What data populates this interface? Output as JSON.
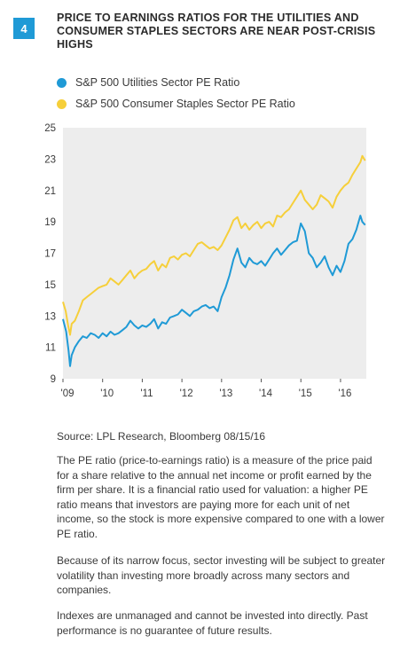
{
  "figure": {
    "number": "4",
    "title": "PRICE TO EARNINGS RATIOS FOR THE UTILITIES AND CONSUMER STAPLES SECTORS ARE NEAR POST-CRISIS HIGHS"
  },
  "colors": {
    "utilities": "#1f9ad6",
    "staples": "#f6cf3a",
    "plot_background": "#ededed"
  },
  "chart_data": {
    "type": "line",
    "ylim": [
      9,
      25
    ],
    "xlim": [
      2009.0,
      2016.65
    ],
    "yticks": [
      9,
      11,
      13,
      15,
      17,
      19,
      21,
      23,
      25
    ],
    "ytick_labels": [
      "9",
      "11",
      "13",
      "15",
      "17",
      "19",
      "21",
      "23",
      "25"
    ],
    "xticks": [
      2009,
      2010,
      2011,
      2012,
      2013,
      2014,
      2015,
      2016
    ],
    "xtick_labels": [
      "'09",
      "'10",
      "'11",
      "'12",
      "'13",
      "'14",
      "'15",
      "'16"
    ],
    "grid": false,
    "legend_position": "top-left",
    "series": [
      {
        "name": "S&P 500 Utilities Sector PE Ratio",
        "color": "#1f9ad6",
        "x": [
          2009.0,
          2009.08,
          2009.14,
          2009.18,
          2009.22,
          2009.3,
          2009.4,
          2009.5,
          2009.6,
          2009.7,
          2009.8,
          2009.9,
          2010.0,
          2010.1,
          2010.2,
          2010.3,
          2010.4,
          2010.5,
          2010.6,
          2010.7,
          2010.8,
          2010.9,
          2011.0,
          2011.1,
          2011.2,
          2011.3,
          2011.4,
          2011.5,
          2011.6,
          2011.7,
          2011.8,
          2011.9,
          2012.0,
          2012.1,
          2012.2,
          2012.3,
          2012.4,
          2012.5,
          2012.6,
          2012.7,
          2012.8,
          2012.9,
          2013.0,
          2013.1,
          2013.2,
          2013.3,
          2013.4,
          2013.5,
          2013.6,
          2013.7,
          2013.8,
          2013.9,
          2014.0,
          2014.1,
          2014.2,
          2014.3,
          2014.4,
          2014.5,
          2014.6,
          2014.7,
          2014.8,
          2014.9,
          2015.0,
          2015.1,
          2015.2,
          2015.3,
          2015.4,
          2015.5,
          2015.6,
          2015.7,
          2015.8,
          2015.9,
          2016.0,
          2016.1,
          2016.2,
          2016.3,
          2016.4,
          2016.5,
          2016.55,
          2016.62
        ],
        "y": [
          12.8,
          12.0,
          10.8,
          9.8,
          10.5,
          11.0,
          11.4,
          11.7,
          11.6,
          11.9,
          11.8,
          11.6,
          11.9,
          11.7,
          12.0,
          11.8,
          11.9,
          12.1,
          12.3,
          12.7,
          12.4,
          12.2,
          12.4,
          12.3,
          12.5,
          12.8,
          12.2,
          12.6,
          12.5,
          12.9,
          13.0,
          13.1,
          13.4,
          13.2,
          13.0,
          13.3,
          13.4,
          13.6,
          13.7,
          13.5,
          13.6,
          13.3,
          14.2,
          14.8,
          15.6,
          16.6,
          17.3,
          16.4,
          16.1,
          16.7,
          16.4,
          16.3,
          16.5,
          16.2,
          16.6,
          17.0,
          17.3,
          16.9,
          17.2,
          17.5,
          17.7,
          17.8,
          18.9,
          18.4,
          17.0,
          16.7,
          16.1,
          16.4,
          16.8,
          16.1,
          15.6,
          16.2,
          15.8,
          16.5,
          17.6,
          17.9,
          18.5,
          19.4,
          19.0,
          18.8
        ]
      },
      {
        "name": "S&P 500 Consumer Staples Sector PE Ratio",
        "color": "#f6cf3a",
        "x": [
          2009.0,
          2009.07,
          2009.13,
          2009.18,
          2009.22,
          2009.3,
          2009.4,
          2009.5,
          2009.6,
          2009.7,
          2009.8,
          2009.9,
          2010.0,
          2010.1,
          2010.2,
          2010.3,
          2010.4,
          2010.5,
          2010.6,
          2010.7,
          2010.8,
          2010.9,
          2011.0,
          2011.1,
          2011.2,
          2011.3,
          2011.4,
          2011.5,
          2011.6,
          2011.7,
          2011.8,
          2011.9,
          2012.0,
          2012.1,
          2012.2,
          2012.3,
          2012.4,
          2012.5,
          2012.6,
          2012.7,
          2012.8,
          2012.9,
          2013.0,
          2013.1,
          2013.2,
          2013.3,
          2013.4,
          2013.5,
          2013.6,
          2013.7,
          2013.8,
          2013.9,
          2014.0,
          2014.1,
          2014.2,
          2014.3,
          2014.4,
          2014.5,
          2014.6,
          2014.7,
          2014.8,
          2014.9,
          2015.0,
          2015.1,
          2015.2,
          2015.3,
          2015.4,
          2015.5,
          2015.6,
          2015.7,
          2015.8,
          2015.9,
          2016.0,
          2016.1,
          2016.2,
          2016.3,
          2016.4,
          2016.5,
          2016.55,
          2016.62
        ],
        "y": [
          13.9,
          13.3,
          12.4,
          11.8,
          12.5,
          12.7,
          13.3,
          14.0,
          14.2,
          14.4,
          14.6,
          14.8,
          14.9,
          15.0,
          15.4,
          15.2,
          15.0,
          15.3,
          15.6,
          15.9,
          15.4,
          15.7,
          15.9,
          16.0,
          16.3,
          16.5,
          15.9,
          16.3,
          16.1,
          16.7,
          16.8,
          16.6,
          16.9,
          17.0,
          16.8,
          17.2,
          17.6,
          17.7,
          17.5,
          17.3,
          17.4,
          17.2,
          17.5,
          18.0,
          18.5,
          19.1,
          19.3,
          18.6,
          18.9,
          18.5,
          18.8,
          19.0,
          18.6,
          18.9,
          19.0,
          18.7,
          19.4,
          19.3,
          19.6,
          19.8,
          20.2,
          20.6,
          21.0,
          20.4,
          20.1,
          19.8,
          20.1,
          20.7,
          20.5,
          20.3,
          19.9,
          20.6,
          21.0,
          21.3,
          21.5,
          22.0,
          22.4,
          22.8,
          23.2,
          22.9
        ]
      }
    ]
  },
  "source": "Source: LPL Research, Bloomberg   08/15/16",
  "notes": [
    "The PE ratio (price-to-earnings ratio) is a measure of the price paid for a share relative to the annual net income or profit earned by the firm per share. It is a financial ratio used for valuation: a higher PE ratio means that investors are paying more for each unit of net income, so the stock is more expensive compared to one with a lower PE ratio.",
    "Because of its narrow focus, sector investing will be subject to greater volatility than investing more broadly across many sectors and companies.",
    "Indexes are unmanaged and cannot be invested into directly. Past performance is no guarantee of future results."
  ]
}
